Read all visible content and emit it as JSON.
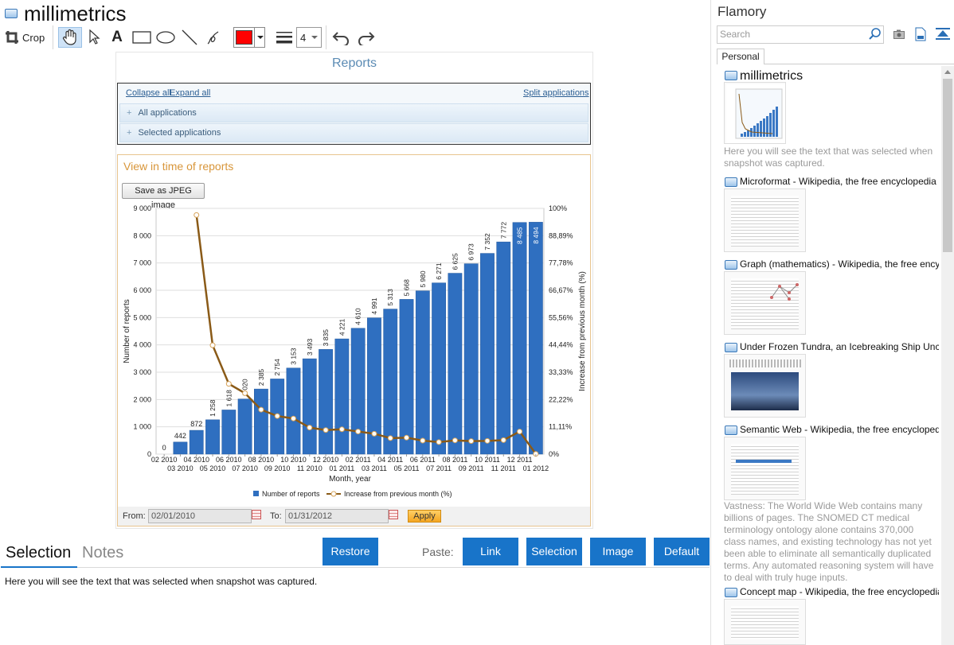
{
  "app": {
    "title": "millimetrics"
  },
  "toolbar": {
    "crop_label": "Crop",
    "line_width": "4",
    "color": "#ff0000"
  },
  "document": {
    "reports_title": "Reports",
    "collapse_all": "Collapse all",
    "expand_all": "Expand all",
    "split_applications": "Split applications",
    "all_applications": "All applications",
    "selected_applications": "Selected applications",
    "view_title": "View in time of reports",
    "save_jpeg": "Save as JPEG image",
    "from_label": "From:",
    "from_value": "02/01/2010",
    "to_label": "To:",
    "to_value": "01/31/2012",
    "apply": "Apply"
  },
  "chart_data": {
    "type": "bar",
    "xlabel": "Month, year",
    "ylabel": "Number of reports",
    "y2label": "Increase from previous month (%)",
    "ylim": [
      0,
      9000
    ],
    "y2lim": [
      0,
      100
    ],
    "yticks": [
      "0",
      "1 000",
      "2 000",
      "3 000",
      "4 000",
      "5 000",
      "6 000",
      "7 000",
      "8 000",
      "9 000"
    ],
    "y2ticks": [
      "0%",
      "11,11%",
      "22,22%",
      "33,33%",
      "44,44%",
      "55,56%",
      "66,67%",
      "77,78%",
      "88,89%",
      "100%"
    ],
    "categories": [
      "02 2010",
      "03 2010",
      "04 2010",
      "05 2010",
      "06 2010",
      "07 2010",
      "08 2010",
      "09 2010",
      "10 2010",
      "11 2010",
      "12 2010",
      "01 2011",
      "02 2011",
      "03 2011",
      "04 2011",
      "05 2011",
      "06 2011",
      "07 2011",
      "08 2011",
      "09 2011",
      "10 2011",
      "11 2011",
      "12 2011",
      "01 2012"
    ],
    "series": [
      {
        "name": "Number of reports",
        "color": "#2f6fc0",
        "values": [
          0,
          442,
          872,
          1258,
          1618,
          2020,
          2385,
          2754,
          3153,
          3493,
          3835,
          4221,
          4610,
          4991,
          5313,
          5668,
          5980,
          6271,
          6625,
          6973,
          7352,
          7772,
          8485,
          8494
        ],
        "labels": [
          "0",
          "442",
          "872",
          "1 258",
          "1 618",
          "2 020",
          "2 385",
          "2 754",
          "3 153",
          "3 493",
          "3 835",
          "4 221",
          "4 610",
          "4 991",
          "5 313",
          "5 668",
          "5 980",
          "6 271",
          "6 625",
          "6 973",
          "7 352",
          "7 772",
          "8 485",
          "8 494"
        ]
      },
      {
        "name": "Increase from previous month (%)",
        "color": "#8a5a17",
        "values": [
          null,
          null,
          97.3,
          44.3,
          28.6,
          24.8,
          18.1,
          15.5,
          14.5,
          10.8,
          9.8,
          10.1,
          9.2,
          8.3,
          6.5,
          6.7,
          5.5,
          4.9,
          5.6,
          5.3,
          5.4,
          5.7,
          9.2,
          0.1
        ]
      }
    ],
    "legend": "bottom"
  },
  "bottom": {
    "tab_selection": "Selection",
    "tab_notes": "Notes",
    "restore": "Restore",
    "paste_label": "Paste:",
    "link": "Link",
    "selection": "Selection",
    "image": "Image",
    "default": "Default",
    "selection_text": "Here you will see the text that was selected when snapshot was captured."
  },
  "sidebar": {
    "title": "Flamory",
    "search_placeholder": "Search",
    "tab_personal": "Personal",
    "entries": [
      {
        "title": "millimetrics",
        "desc": "Here you will see the text that was selected when snapshot was captured."
      },
      {
        "title": "Microformat - Wikipedia, the free encyclopedia"
      },
      {
        "title": "Graph (mathematics) - Wikipedia, the free encyclopedia"
      },
      {
        "title": "Under Frozen Tundra, an Icebreaking Ship Uncovers"
      },
      {
        "title": "Semantic Web - Wikipedia, the free encyclopedia",
        "desc": "Vastness: The World Wide Web contains many billions of pages. The SNOMED CT medical terminology ontology alone contains 370,000 class names, and existing technology has not yet been able to eliminate all semantically duplicated terms. Any automated reasoning system will have to deal with truly huge inputs."
      },
      {
        "title": "Concept map - Wikipedia, the free encyclopedia"
      }
    ]
  }
}
